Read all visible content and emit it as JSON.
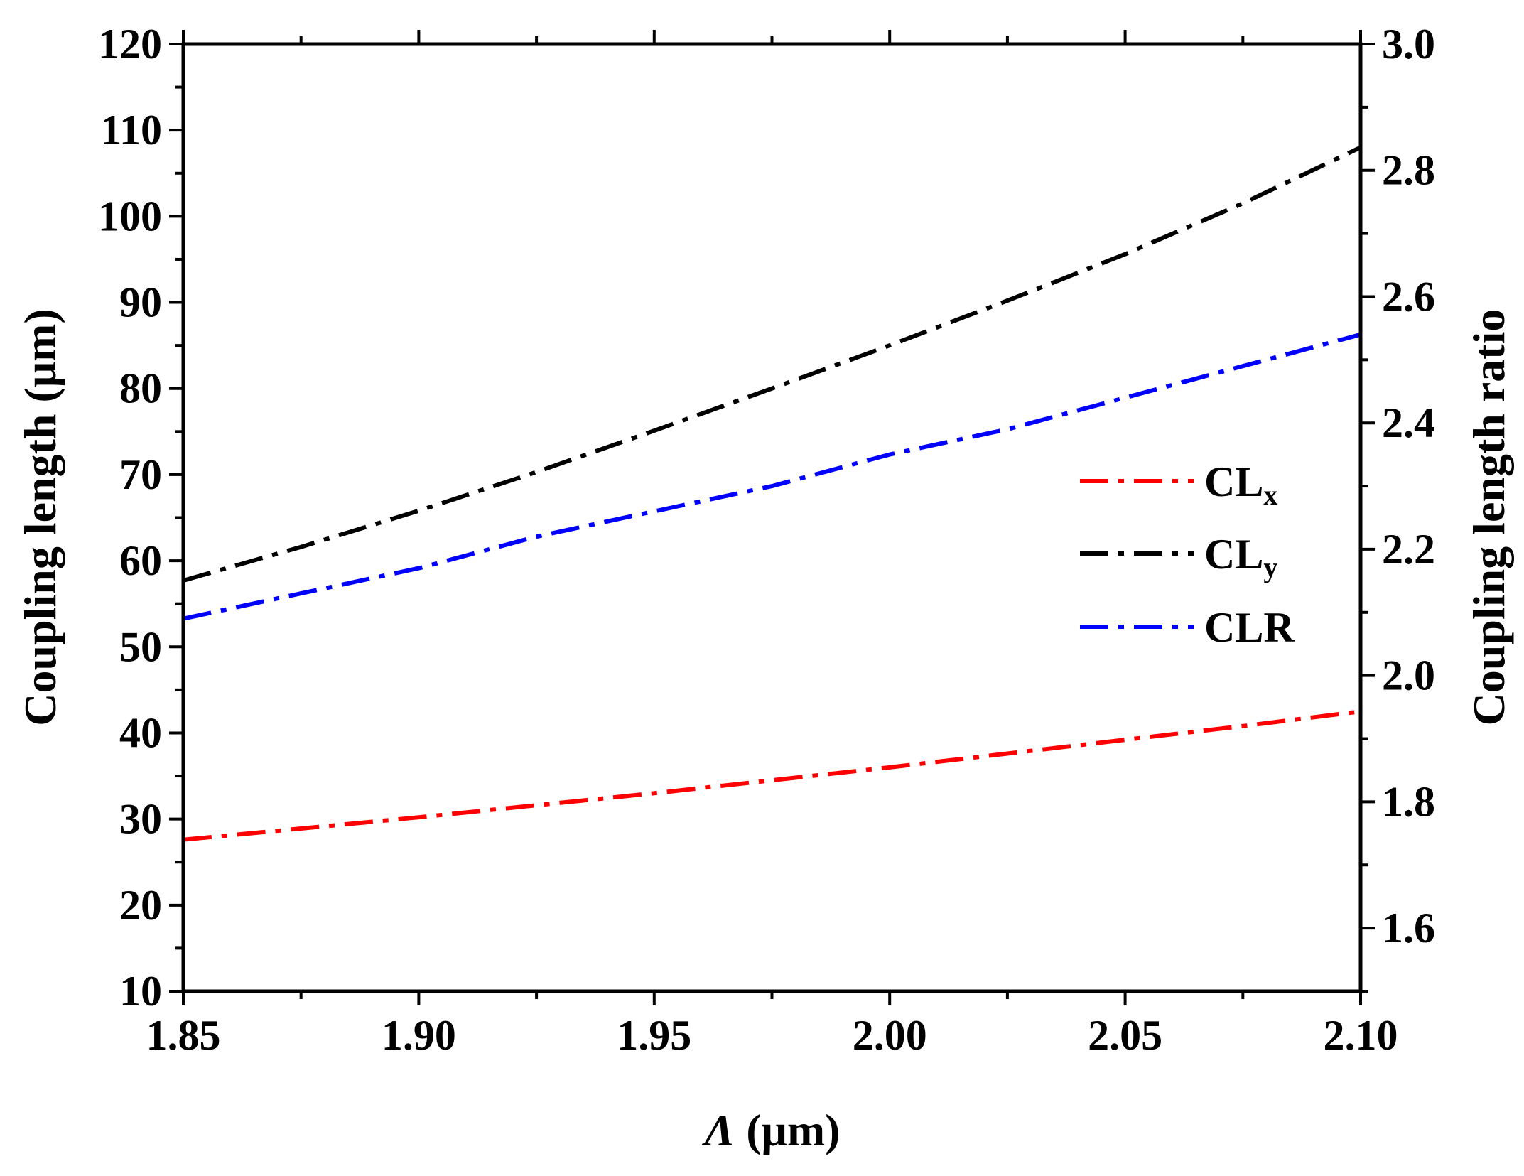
{
  "chart_data": {
    "type": "line",
    "title": "",
    "xlabel_symbol": "Λ",
    "xlabel_unit": " (μm)",
    "ylabel": "Coupling length (μm)",
    "y2label": "Coupling length ratio",
    "xlim": [
      1.85,
      2.1
    ],
    "ylim": [
      10,
      120
    ],
    "y2lim": [
      1.5,
      3.0
    ],
    "x_ticks": [
      "1.85",
      "1.90",
      "1.95",
      "2.00",
      "2.05",
      "2.10"
    ],
    "y_ticks": [
      "10",
      "20",
      "30",
      "40",
      "50",
      "60",
      "70",
      "80",
      "90",
      "100",
      "110",
      "120"
    ],
    "y2_ticks": [
      "1.6",
      "1.8",
      "2.0",
      "2.2",
      "2.4",
      "2.6",
      "2.8",
      "3.0"
    ],
    "legend_position": "center-right",
    "series": [
      {
        "name": "CL",
        "subscript": "x",
        "axis": "left",
        "color": "#ff0000",
        "x": [
          1.85,
          1.875,
          1.9,
          1.925,
          1.95,
          1.975,
          2.0,
          2.025,
          2.05,
          2.075,
          2.1
        ],
        "y": [
          27.6,
          28.9,
          30.2,
          31.6,
          33.0,
          34.5,
          36.0,
          37.6,
          39.2,
          40.8,
          42.5
        ]
      },
      {
        "name": "CL",
        "subscript": "y",
        "axis": "left",
        "color": "#000000",
        "x": [
          1.85,
          1.875,
          1.9,
          1.925,
          1.95,
          1.975,
          2.0,
          2.025,
          2.05,
          2.075,
          2.1
        ],
        "y": [
          57.7,
          61.6,
          65.8,
          70.3,
          75.1,
          80.0,
          85.0,
          90.2,
          95.6,
          101.5,
          108.0
        ]
      },
      {
        "name": "CLR",
        "subscript": "",
        "axis": "right",
        "color": "#0000ff",
        "x": [
          1.85,
          1.875,
          1.9,
          1.925,
          1.95,
          1.975,
          2.0,
          2.025,
          2.05,
          2.075,
          2.1
        ],
        "y": [
          2.09,
          2.13,
          2.17,
          2.22,
          2.26,
          2.3,
          2.35,
          2.39,
          2.44,
          2.49,
          2.54
        ]
      }
    ]
  }
}
